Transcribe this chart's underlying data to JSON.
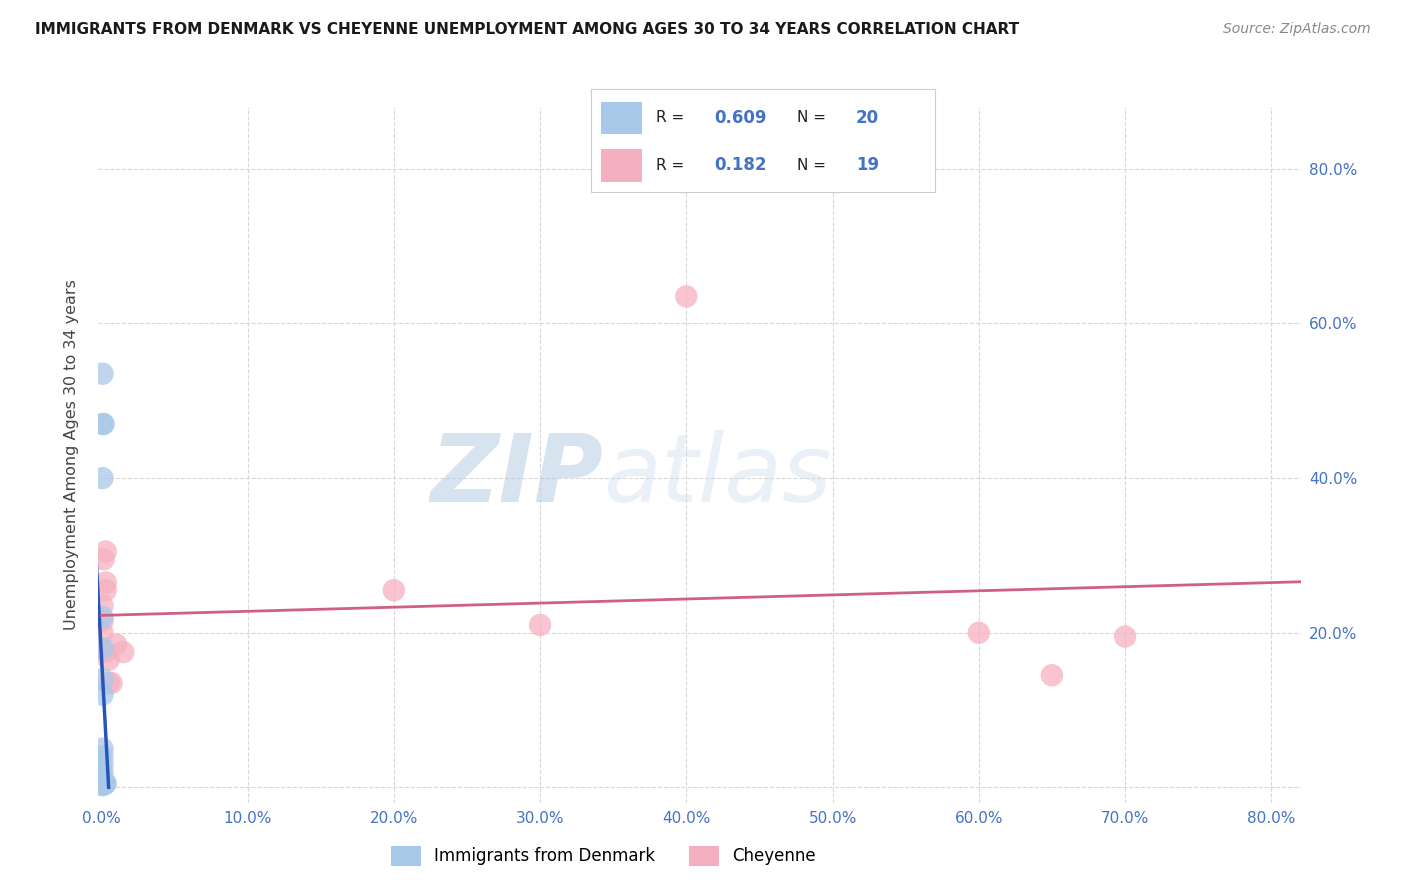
{
  "title": "IMMIGRANTS FROM DENMARK VS CHEYENNE UNEMPLOYMENT AMONG AGES 30 TO 34 YEARS CORRELATION CHART",
  "source": "Source: ZipAtlas.com",
  "ylabel": "Unemployment Among Ages 30 to 34 years",
  "xlim": [
    -0.002,
    0.82
  ],
  "ylim": [
    -0.02,
    0.88
  ],
  "xticks": [
    0.0,
    0.1,
    0.2,
    0.3,
    0.4,
    0.5,
    0.6,
    0.7,
    0.8
  ],
  "xtick_labels": [
    "0.0%",
    "10.0%",
    "20.0%",
    "30.0%",
    "40.0%",
    "50.0%",
    "60.0%",
    "70.0%",
    "80.0%"
  ],
  "ytick_positions": [
    0.0,
    0.2,
    0.4,
    0.6,
    0.8
  ],
  "ytick_labels_left": [
    "",
    "",
    "",
    "",
    ""
  ],
  "ytick_labels_right": [
    "",
    "20.0%",
    "40.0%",
    "60.0%",
    "80.0%"
  ],
  "blue_R": "0.609",
  "blue_N": "20",
  "pink_R": "0.182",
  "pink_N": "19",
  "blue_fill": "#a8c8e8",
  "pink_fill": "#f5b0c0",
  "blue_line": "#2855b8",
  "pink_line": "#d06080",
  "blue_x": [
    0.0008,
    0.0008,
    0.0016,
    0.0008,
    0.0008,
    0.0008,
    0.0008,
    0.0008,
    0.0008,
    0.0008,
    0.0008,
    0.0008,
    0.0008,
    0.0008,
    0.0008,
    0.0008,
    0.0028,
    0.0028,
    0.0008,
    0.0008
  ],
  "blue_y": [
    0.535,
    0.47,
    0.47,
    0.4,
    0.22,
    0.18,
    0.14,
    0.12,
    0.05,
    0.04,
    0.03,
    0.02,
    0.01,
    0.01,
    0.01,
    0.005,
    0.005,
    0.005,
    0.003,
    0.003
  ],
  "pink_x": [
    0.0008,
    0.0008,
    0.0008,
    0.0016,
    0.003,
    0.003,
    0.003,
    0.003,
    0.005,
    0.005,
    0.007,
    0.01,
    0.015,
    0.2,
    0.3,
    0.6,
    0.65,
    0.7,
    0.4
  ],
  "pink_y": [
    0.235,
    0.215,
    0.2,
    0.295,
    0.305,
    0.265,
    0.255,
    0.175,
    0.165,
    0.135,
    0.135,
    0.185,
    0.175,
    0.255,
    0.21,
    0.2,
    0.145,
    0.195,
    0.635
  ],
  "watermark_zip": "ZIP",
  "watermark_atlas": "atlas",
  "legend_blue": "Immigrants from Denmark",
  "legend_pink": "Cheyenne",
  "bg_color": "#ffffff",
  "grid_color": "#d8d8d8",
  "tick_color": "#4472c4",
  "text_color_dark": "#1a1a1a",
  "text_color_label": "#444444"
}
